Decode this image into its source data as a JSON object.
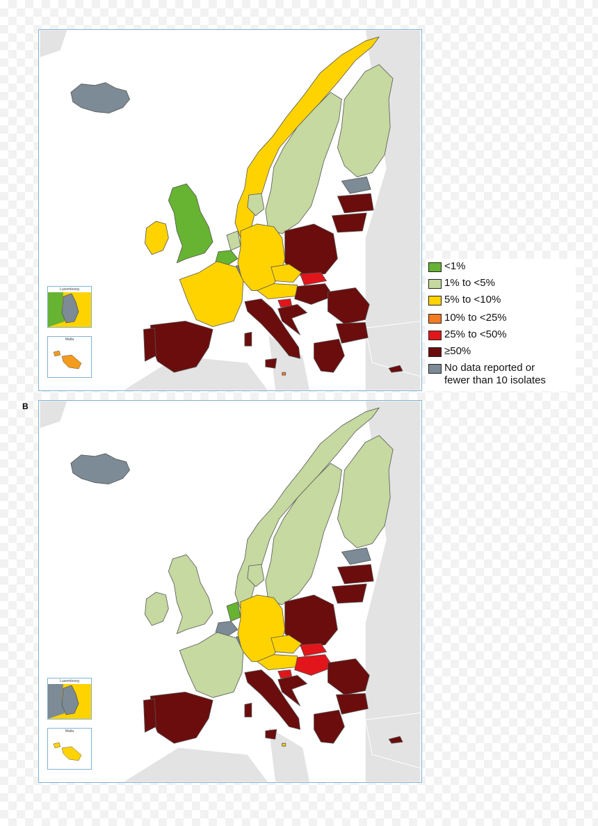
{
  "panel_b_label": "B",
  "legend": {
    "items": [
      {
        "label": "<1%",
        "color": "#67b332"
      },
      {
        "label": "1% to <5%",
        "color": "#c5d9a0"
      },
      {
        "label": "5% to <10%",
        "color": "#fed300"
      },
      {
        "label": "10% to <25%",
        "color": "#f47b20"
      },
      {
        "label": "25% to <50%",
        "color": "#e2151b"
      },
      {
        "label": "≥50%",
        "color": "#6b0d0d"
      },
      {
        "label": "No data reported or\nfewer than 10 isolates",
        "color": "#7c8b95"
      }
    ]
  },
  "insets": {
    "luxembourg_title": "Luxembourg",
    "malta_title": "Malta"
  },
  "maps": [
    {
      "id": "A",
      "category_by_country": {
        "Iceland": "No data reported or fewer than 10 isolates",
        "Norway": "5% to <10%",
        "Sweden": "1% to <5%",
        "Finland": "1% to <5%",
        "Estonia": "No data reported or fewer than 10 isolates",
        "Latvia": "≥50%",
        "Lithuania": "≥50%",
        "Ireland": "5% to <10%",
        "United Kingdom": "<1%",
        "Denmark": "1% to <5%",
        "Netherlands": "1% to <5%",
        "Belgium": "<1%",
        "Luxembourg": "No data reported or fewer than 10 isolates",
        "Germany": "5% to <10%",
        "France": "5% to <10%",
        "Poland": "≥50%",
        "Czechia": "5% to <10%",
        "Austria": "5% to <10%",
        "Slovakia": "25% to <50%",
        "Hungary": "≥50%",
        "Slovenia": "25% to <50%",
        "Croatia": "≥50%",
        "Romania": "≥50%",
        "Bulgaria": "≥50%",
        "Greece": "≥50%",
        "Italy": "≥50%",
        "Spain": "≥50%",
        "Portugal": "≥50%",
        "Malta": "10% to <25%",
        "Cyprus": "≥50%"
      }
    },
    {
      "id": "B",
      "category_by_country": {
        "Iceland": "No data reported or fewer than 10 isolates",
        "Norway": "1% to <5%",
        "Sweden": "1% to <5%",
        "Finland": "1% to <5%",
        "Estonia": "No data reported or fewer than 10 isolates",
        "Latvia": "≥50%",
        "Lithuania": "≥50%",
        "Ireland": "1% to <5%",
        "United Kingdom": "1% to <5%",
        "Denmark": "1% to <5%",
        "Netherlands": "<1%",
        "Belgium": "No data reported or fewer than 10 isolates",
        "Luxembourg": "No data reported or fewer than 10 isolates",
        "Germany": "5% to <10%",
        "France": "1% to <5%",
        "Poland": "≥50%",
        "Czechia": "5% to <10%",
        "Austria": "5% to <10%",
        "Slovakia": "25% to <50%",
        "Hungary": "25% to <50%",
        "Slovenia": "25% to <50%",
        "Croatia": "≥50%",
        "Romania": "≥50%",
        "Bulgaria": "≥50%",
        "Greece": "≥50%",
        "Italy": "≥50%",
        "Spain": "≥50%",
        "Portugal": "≥50%",
        "Malta": "5% to <10%",
        "Cyprus": "≥50%"
      }
    }
  ]
}
